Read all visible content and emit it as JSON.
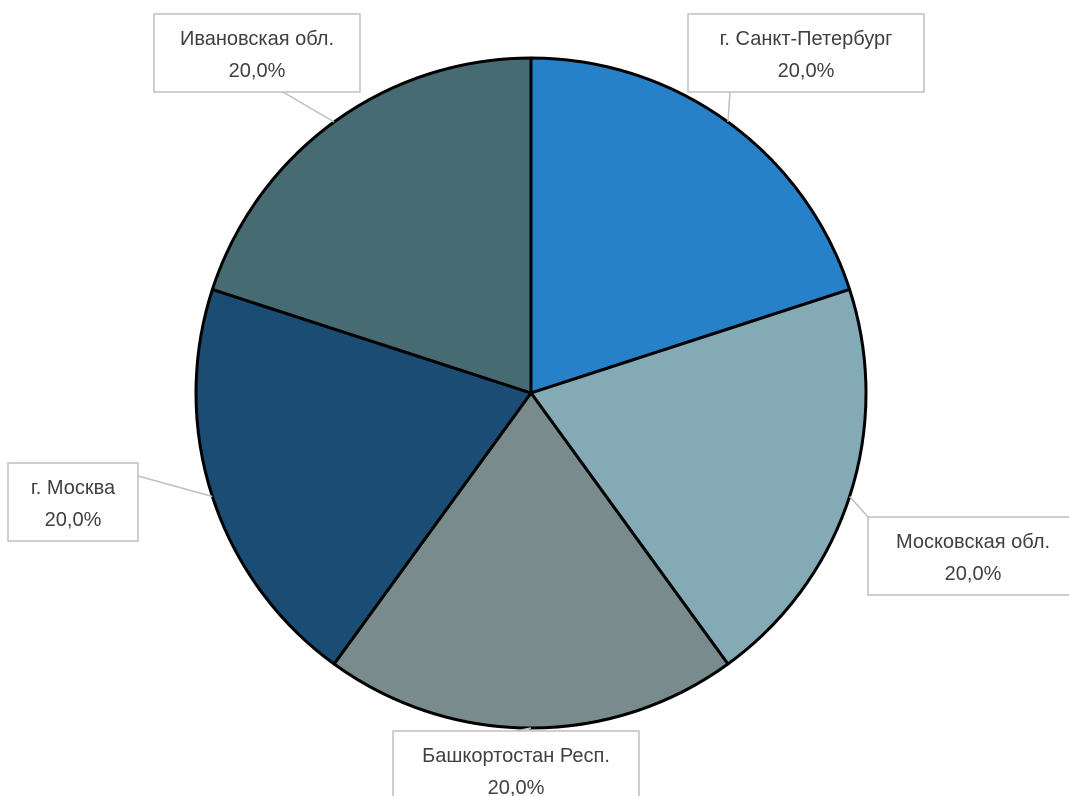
{
  "chart_data": {
    "type": "pie",
    "title": "",
    "categories": [
      "г. Санкт-Петербург",
      "Московская обл.",
      "Башкортостан Респ.",
      "г. Москва",
      "Ивановская обл."
    ],
    "values": [
      20.0,
      20.0,
      20.0,
      20.0,
      20.0
    ],
    "data_labels": [
      "20,0%",
      "20,0%",
      "20,0%",
      "20,0%",
      "20,0%"
    ],
    "colors": [
      "#2781c8",
      "#84aab5",
      "#7a8b8e",
      "#1a4c74",
      "#476b73"
    ],
    "start_angle_deg": 0,
    "direction": "clockwise",
    "legend": "none"
  }
}
